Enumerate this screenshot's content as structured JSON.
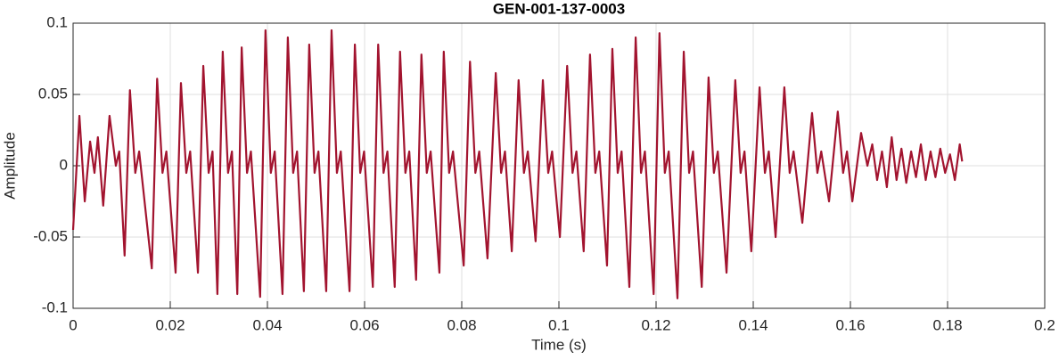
{
  "chart_data": {
    "type": "line",
    "title": "GEN-001-137-0003",
    "xlabel": "Time (s)",
    "ylabel": "Amplitude",
    "xlim": [
      0,
      0.2
    ],
    "ylim": [
      -0.1,
      0.1
    ],
    "xticks": [
      0,
      0.02,
      0.04,
      0.06,
      0.08,
      0.1,
      0.12,
      0.14,
      0.16,
      0.18,
      0.2
    ],
    "yticks": [
      -0.1,
      -0.05,
      0,
      0.05,
      0.1
    ],
    "grid": true,
    "x": [
      0,
      0.0013,
      0.0024,
      0.0035,
      0.0044,
      0.0051,
      0.0062,
      0.0075,
      0.0088,
      0.0095,
      0.0106,
      0.0117,
      0.0128,
      0.0136,
      0.0162,
      0.0173,
      0.0184,
      0.0192,
      0.0211,
      0.0222,
      0.0233,
      0.0241,
      0.0257,
      0.0268,
      0.0279,
      0.0287,
      0.0297,
      0.0308,
      0.0319,
      0.0327,
      0.0338,
      0.0347,
      0.0358,
      0.0366,
      0.0385,
      0.0396,
      0.0407,
      0.0415,
      0.0431,
      0.0442,
      0.0453,
      0.0461,
      0.0475,
      0.0486,
      0.0497,
      0.0505,
      0.0521,
      0.0532,
      0.0543,
      0.0551,
      0.0569,
      0.058,
      0.0591,
      0.0599,
      0.0617,
      0.0628,
      0.0639,
      0.0647,
      0.0662,
      0.0673,
      0.0684,
      0.0692,
      0.0706,
      0.0717,
      0.0728,
      0.0736,
      0.0754,
      0.0763,
      0.0774,
      0.0782,
      0.0804,
      0.0817,
      0.0828,
      0.0836,
      0.0853,
      0.087,
      0.0881,
      0.0889,
      0.0903,
      0.0917,
      0.0928,
      0.0936,
      0.0952,
      0.0967,
      0.0978,
      0.0986,
      0.1002,
      0.1017,
      0.1028,
      0.1036,
      0.1051,
      0.1064,
      0.1075,
      0.1083,
      0.1099,
      0.111,
      0.1121,
      0.1129,
      0.1145,
      0.1158,
      0.1169,
      0.1177,
      0.1195,
      0.1207,
      0.1218,
      0.1226,
      0.1244,
      0.1257,
      0.1268,
      0.1276,
      0.1294,
      0.1308,
      0.1319,
      0.1327,
      0.1345,
      0.1363,
      0.1374,
      0.1382,
      0.1396,
      0.1413,
      0.1424,
      0.1432,
      0.1446,
      0.1464,
      0.1475,
      0.1483,
      0.1501,
      0.1521,
      0.1532,
      0.154,
      0.1556,
      0.1574,
      0.1585,
      0.1593,
      0.1604,
      0.1622,
      0.1635,
      0.1645,
      0.1655,
      0.1665,
      0.1675,
      0.1685,
      0.1695,
      0.1705,
      0.1715,
      0.1725,
      0.1735,
      0.1745,
      0.1755,
      0.1765,
      0.1775,
      0.1785,
      0.1795,
      0.1805,
      0.1815,
      0.1825,
      0.183
    ],
    "series": [
      {
        "color": "#a2142f",
        "values": [
          -0.045,
          0.035,
          -0.025,
          0.017,
          -0.005,
          0.02,
          -0.028,
          0.035,
          0,
          0.01,
          -0.063,
          0.053,
          -0.005,
          0.01,
          -0.072,
          0.061,
          -0.005,
          0.01,
          -0.075,
          0.058,
          -0.005,
          0.01,
          -0.075,
          0.07,
          -0.005,
          0.01,
          -0.09,
          0.08,
          -0.005,
          0.01,
          -0.09,
          0.083,
          -0.005,
          0.01,
          -0.092,
          0.095,
          -0.005,
          0.01,
          -0.09,
          0.09,
          -0.005,
          0.01,
          -0.088,
          0.085,
          -0.005,
          0.01,
          -0.088,
          0.095,
          -0.005,
          0.01,
          -0.088,
          0.085,
          -0.005,
          0.01,
          -0.085,
          0.085,
          -0.005,
          0.01,
          -0.085,
          0.08,
          -0.005,
          0.01,
          -0.08,
          0.078,
          -0.005,
          0.01,
          -0.075,
          0.08,
          -0.005,
          0.01,
          -0.07,
          0.073,
          -0.005,
          0.01,
          -0.065,
          0.065,
          -0.005,
          0.01,
          -0.06,
          0.06,
          -0.005,
          0.01,
          -0.053,
          0.06,
          -0.005,
          0.01,
          -0.05,
          0.07,
          -0.005,
          0.01,
          -0.06,
          0.078,
          -0.005,
          0.01,
          -0.07,
          0.082,
          -0.005,
          0.01,
          -0.085,
          0.09,
          -0.005,
          0.01,
          -0.09,
          0.093,
          -0.005,
          0.01,
          -0.093,
          0.08,
          -0.005,
          0.01,
          -0.085,
          0.062,
          -0.005,
          0.01,
          -0.075,
          0.06,
          -0.005,
          0.01,
          -0.06,
          0.055,
          -0.005,
          0.01,
          -0.05,
          0.055,
          -0.005,
          0.01,
          -0.04,
          0.037,
          -0.005,
          0.01,
          -0.025,
          0.038,
          -0.005,
          0.01,
          -0.025,
          0.023,
          0,
          0.015,
          -0.01,
          0.01,
          -0.015,
          0.02,
          -0.01,
          0.012,
          -0.012,
          0.01,
          -0.008,
          0.015,
          -0.01,
          0.01,
          -0.008,
          0.012,
          -0.005,
          0.008,
          -0.01,
          0.015,
          0.003
        ]
      }
    ]
  }
}
